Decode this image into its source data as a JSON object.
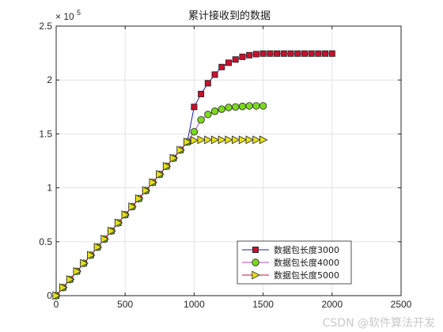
{
  "chart_data": {
    "type": "line",
    "title": "累计接收到的数据",
    "xlabel": "",
    "ylabel": "",
    "xlim": [
      0,
      2500
    ],
    "ylim": [
      0,
      250000
    ],
    "x_ticks": [
      0,
      500,
      1000,
      1500,
      2000,
      2500
    ],
    "y_ticks": [
      0,
      0.5,
      1,
      1.5,
      2,
      2.5
    ],
    "y_exponent_label": "× 10",
    "y_exponent_power": "5",
    "grid": true,
    "legend_position": "bottom-right",
    "series": [
      {
        "name": "数据包长度3000",
        "line_color": "#1f1fb4",
        "marker": "square",
        "marker_fill": "#c8102e",
        "x": [
          0,
          50,
          100,
          150,
          200,
          250,
          300,
          350,
          400,
          450,
          500,
          550,
          600,
          650,
          700,
          750,
          800,
          850,
          900,
          950,
          1000,
          1050,
          1100,
          1150,
          1200,
          1250,
          1300,
          1350,
          1400,
          1450,
          1500,
          1550,
          1600,
          1650,
          1700,
          1750,
          1800,
          1850,
          1900,
          1950,
          2000
        ],
        "y": [
          0,
          7500,
          15000,
          22500,
          30000,
          37500,
          45000,
          52500,
          60000,
          67500,
          75000,
          82500,
          90000,
          97500,
          105000,
          112500,
          120000,
          127500,
          135000,
          142500,
          175000,
          187000,
          197000,
          205000,
          212000,
          216000,
          219000,
          221500,
          223000,
          224000,
          224500,
          224500,
          224500,
          224500,
          224500,
          224500,
          224500,
          224500,
          224500,
          224500,
          224500
        ]
      },
      {
        "name": "数据包长度4000",
        "line_color": "#b44bb4",
        "marker": "circle",
        "marker_fill": "#7cd91f",
        "x": [
          0,
          50,
          100,
          150,
          200,
          250,
          300,
          350,
          400,
          450,
          500,
          550,
          600,
          650,
          700,
          750,
          800,
          850,
          900,
          950,
          1000,
          1050,
          1100,
          1150,
          1200,
          1250,
          1300,
          1350,
          1400,
          1450,
          1500
        ],
        "y": [
          0,
          7500,
          15000,
          22500,
          30000,
          37500,
          45000,
          52500,
          60000,
          67500,
          75000,
          82500,
          90000,
          97500,
          105000,
          112500,
          120000,
          127500,
          135000,
          142500,
          152000,
          163000,
          168000,
          171000,
          173000,
          174500,
          175000,
          175500,
          176000,
          176000,
          176000
        ]
      },
      {
        "name": "数据包长度5000",
        "line_color": "#c8102e",
        "marker": "triangle-right",
        "marker_fill": "#e6e01a",
        "x": [
          0,
          50,
          100,
          150,
          200,
          250,
          300,
          350,
          400,
          450,
          500,
          550,
          600,
          650,
          700,
          750,
          800,
          850,
          900,
          950,
          1000,
          1050,
          1100,
          1150,
          1200,
          1250,
          1300,
          1350,
          1400,
          1450,
          1500
        ],
        "y": [
          0,
          7500,
          15000,
          22500,
          30000,
          37500,
          45000,
          52500,
          60000,
          67500,
          75000,
          82500,
          90000,
          97500,
          105000,
          112500,
          120000,
          127500,
          135000,
          142500,
          144000,
          144500,
          144500,
          144500,
          144500,
          144500,
          144500,
          144500,
          144500,
          144500,
          144500
        ]
      }
    ]
  },
  "watermark": "CSDN @软件算法开发"
}
